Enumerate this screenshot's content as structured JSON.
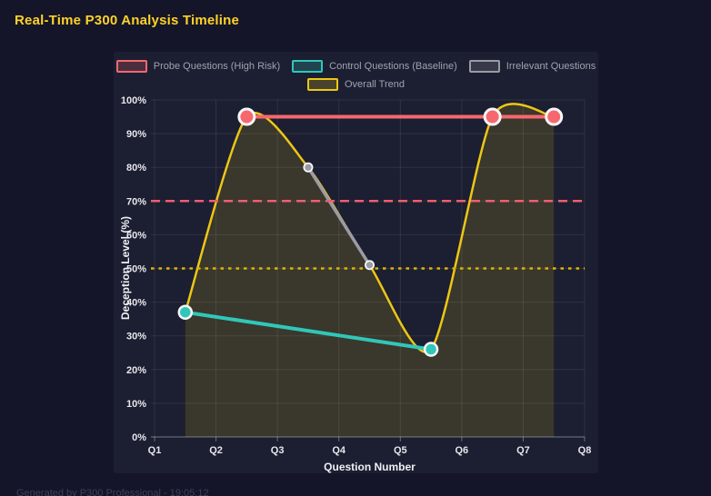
{
  "page": {
    "title": "Real-Time P300 Analysis Timeline",
    "footer": "Generated by P300 Professional - 19:05:12"
  },
  "colors": {
    "background": "#141529",
    "card": "#1c1e31",
    "title": "#ffd226",
    "grid": "rgba(255,255,255,0.09)",
    "axis_line": "rgba(255,255,255,0.40)",
    "tick_mark": "rgba(255,255,255,0.35)",
    "tick_label": "#e6e7ec",
    "axis_title": "#eef0f4",
    "legend_label": "#a0a3b0",
    "marker_ring": "#f7f7fa",
    "footer": "#3d4056"
  },
  "chart_data": {
    "type": "line",
    "title": "Real-Time P300 Analysis Timeline",
    "xlabel": "Question Number",
    "ylabel": "Deception Level (%)",
    "x_ticks": [
      "Q1",
      "Q2",
      "Q3",
      "Q4",
      "Q5",
      "Q6",
      "Q7",
      "Q8"
    ],
    "x_range": [
      1,
      8
    ],
    "ylim": [
      0,
      100
    ],
    "y_tick_step": 10,
    "y_tick_suffix": "%",
    "grid": true,
    "legend_position": "top",
    "series": [
      {
        "name": "Probe Questions (High Risk)",
        "color": "#f6686e",
        "shape": "line",
        "line_width": 4,
        "marker_radius": 8.5,
        "marker_ring": 3,
        "x": [
          2.5,
          6.5,
          7.5
        ],
        "y": [
          95,
          95,
          95
        ]
      },
      {
        "name": "Control Questions (Baseline)",
        "color": "#30c7b9",
        "shape": "line",
        "line_width": 4,
        "marker_radius": 7,
        "marker_ring": 2.5,
        "x": [
          1.5,
          5.5
        ],
        "y": [
          37,
          26
        ]
      },
      {
        "name": "Irrelevant Questions",
        "color": "#9b9ba4",
        "shape": "line",
        "line_width": 3.5,
        "marker_radius": 4.6,
        "marker_ring": 1.8,
        "x": [
          3.5,
          4.5
        ],
        "y": [
          80,
          51
        ]
      },
      {
        "name": "Overall Trend",
        "color": "#ecc715",
        "shape": "spline",
        "area_fill": "rgba(236,199,21,0.15)",
        "line_width": 2.5,
        "marker_radius": 0,
        "marker_ring": 0,
        "x": [
          1.5,
          2.5,
          3.5,
          4.5,
          5.5,
          6.5,
          7.5
        ],
        "y": [
          37,
          95,
          80,
          51,
          26,
          95,
          95
        ]
      }
    ],
    "thresholds": [
      {
        "value": 70,
        "color": "#f25c6e",
        "style": "dashed"
      },
      {
        "value": 50,
        "color": "#e0b400",
        "style": "dotted"
      }
    ]
  }
}
